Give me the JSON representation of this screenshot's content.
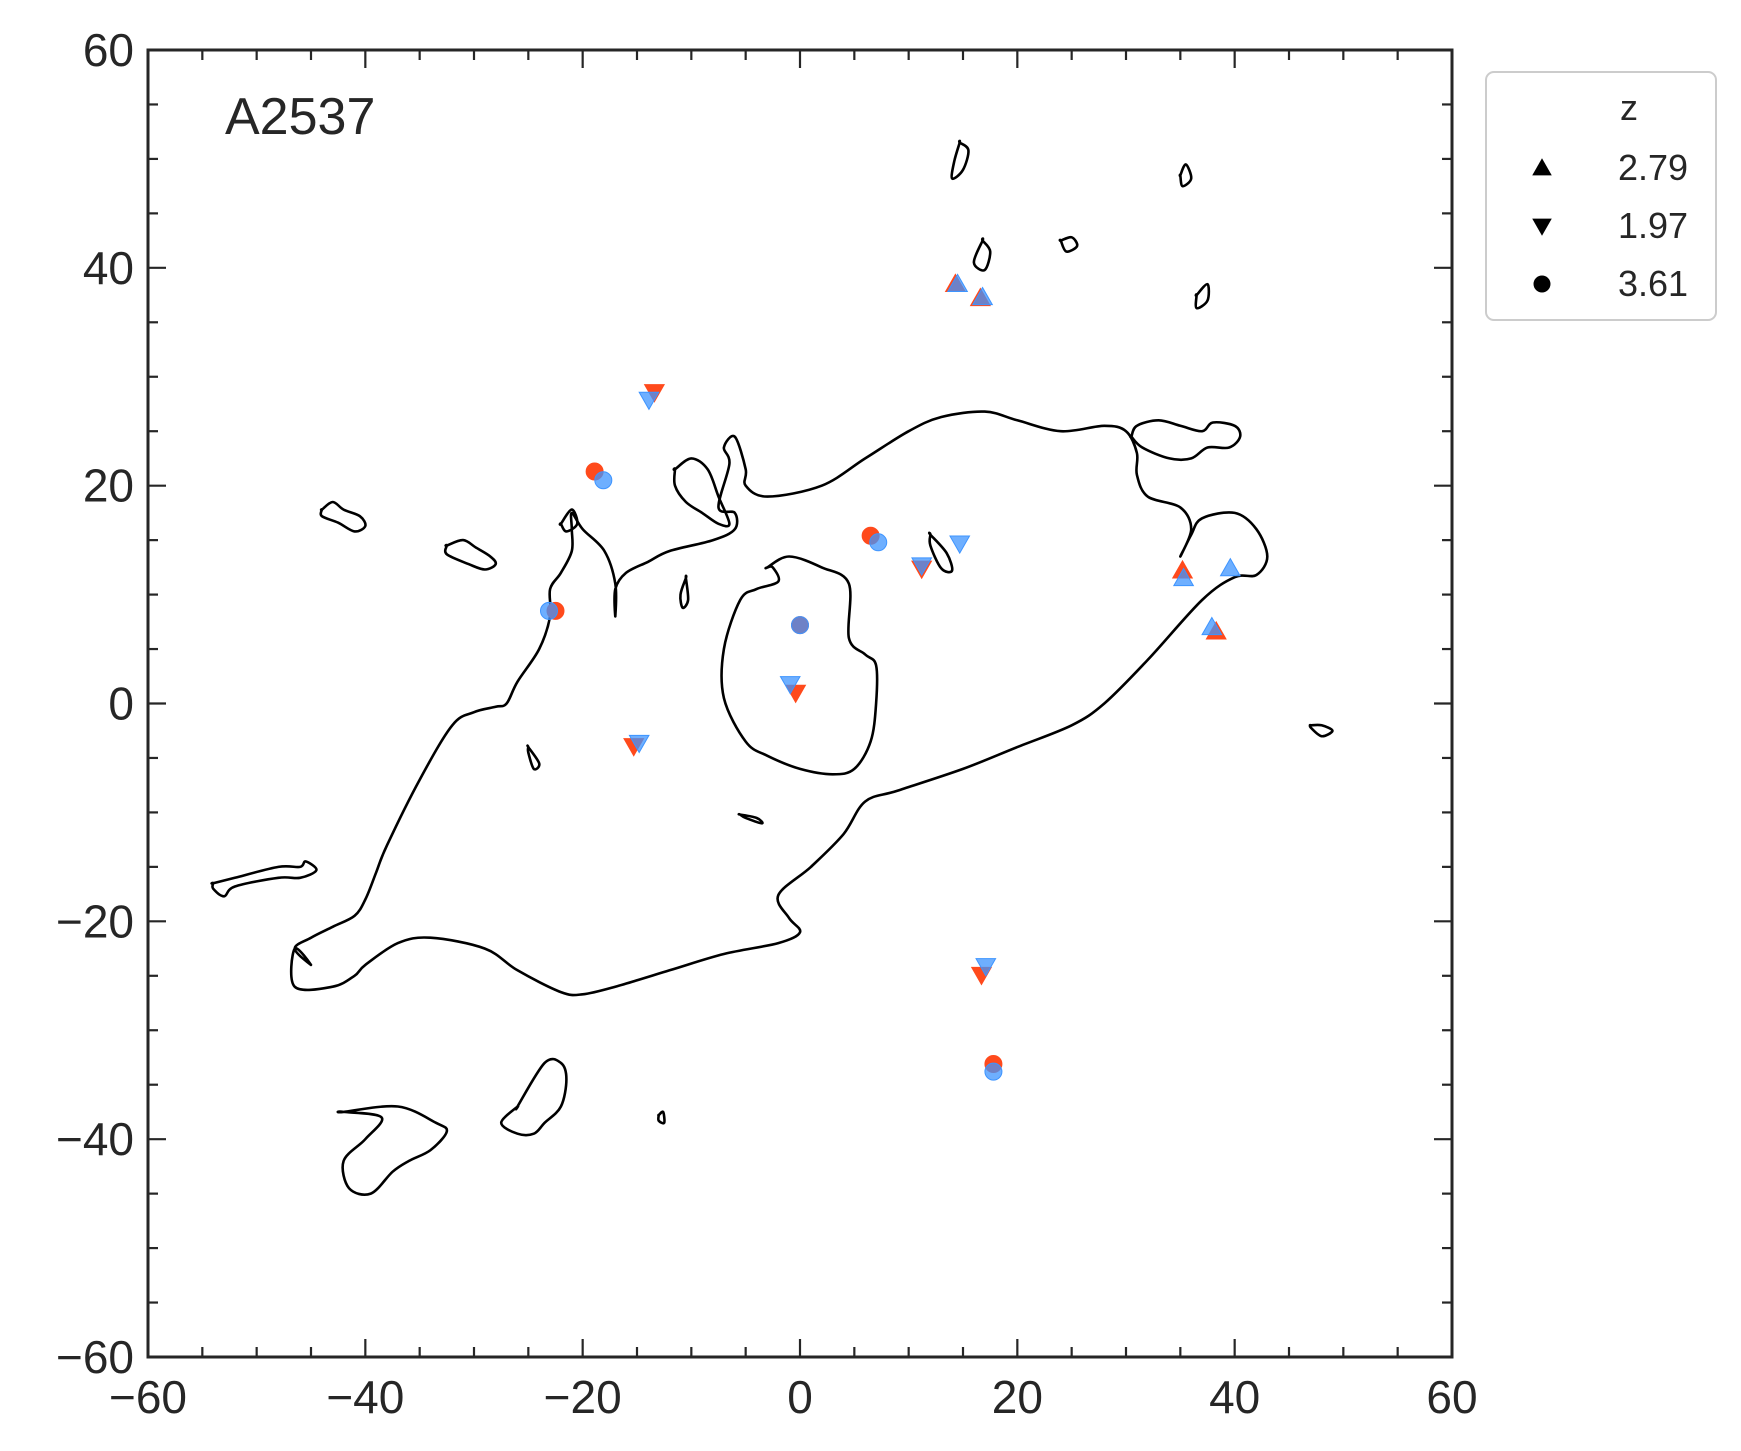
{
  "chart_data": {
    "type": "scatter",
    "annotation": "A2537",
    "xlim": [
      -60,
      60
    ],
    "ylim": [
      -60,
      60
    ],
    "x_ticks": [
      -60,
      -40,
      -20,
      0,
      20,
      40,
      60
    ],
    "y_ticks": [
      -60,
      -40,
      -20,
      0,
      20,
      40,
      60
    ],
    "x_tick_labels": [
      "−60",
      "−40",
      "−20",
      "0",
      "20",
      "40",
      "60"
    ],
    "y_tick_labels": [
      "−60",
      "−40",
      "−20",
      "0",
      "20",
      "40",
      "60"
    ],
    "grid": false,
    "legend": {
      "title": "z",
      "placement": "outside-top-right",
      "entries": [
        {
          "marker": "triangle-up",
          "label": "2.79"
        },
        {
          "marker": "triangle-down",
          "label": "1.97"
        },
        {
          "marker": "circle",
          "label": "3.61"
        }
      ]
    },
    "colors": {
      "observed": "#ff4a1c",
      "model": "#3d94ff",
      "critical_curve": "#000000",
      "axes": "#262626"
    },
    "series": [
      {
        "marker": "triangle-up",
        "z": "2.79",
        "observed": [
          [
            14.3,
            38.5
          ],
          [
            16.6,
            37.2
          ],
          [
            35.2,
            12.2
          ],
          [
            38.3,
            6.6
          ]
        ],
        "model": [
          [
            14.5,
            38.5
          ],
          [
            16.8,
            37.3
          ],
          [
            35.3,
            11.5
          ],
          [
            37.9,
            7.0
          ],
          [
            39.6,
            12.4
          ]
        ]
      },
      {
        "marker": "triangle-down",
        "z": "1.97",
        "observed": [
          [
            -13.4,
            28.6
          ],
          [
            -15.3,
            -3.9
          ],
          [
            -0.4,
            1.0
          ],
          [
            16.7,
            -24.9
          ],
          [
            11.2,
            12.4
          ]
        ],
        "model": [
          [
            -13.9,
            27.9
          ],
          [
            -14.8,
            -3.6
          ],
          [
            -0.9,
            1.8
          ],
          [
            17.1,
            -24.1
          ],
          [
            11.2,
            12.7
          ],
          [
            14.7,
            14.7
          ]
        ]
      },
      {
        "marker": "circle",
        "z": "3.61",
        "observed": [
          [
            -18.9,
            21.3
          ],
          [
            -22.5,
            8.5
          ],
          [
            6.5,
            15.4
          ],
          [
            0.0,
            7.2
          ],
          [
            17.8,
            -33.1
          ]
        ],
        "model": [
          [
            -18.1,
            20.5
          ],
          [
            -23.1,
            8.5
          ],
          [
            7.2,
            14.8
          ],
          [
            0.0,
            7.2
          ],
          [
            17.8,
            -33.8
          ]
        ]
      }
    ],
    "critical_curves": [
      [
        [
          -45,
          -24
        ],
        [
          -46.5,
          -22.5
        ],
        [
          -46.5,
          -26
        ],
        [
          -43,
          -26
        ],
        [
          -41,
          -25
        ],
        [
          -40,
          -24
        ],
        [
          -37,
          -22
        ],
        [
          -34,
          -21.5
        ],
        [
          -29,
          -22.5
        ],
        [
          -26,
          -24.5
        ],
        [
          -22,
          -26.5
        ],
        [
          -20,
          -26.7
        ],
        [
          -17,
          -26
        ],
        [
          -12,
          -24.5
        ],
        [
          -7,
          -23
        ],
        [
          -2,
          -22
        ],
        [
          0,
          -21
        ],
        [
          -1,
          -19.7
        ],
        [
          -2,
          -17.6
        ],
        [
          1,
          -15
        ],
        [
          4,
          -12
        ],
        [
          6,
          -9
        ],
        [
          9,
          -8
        ],
        [
          15,
          -6
        ],
        [
          20,
          -4
        ],
        [
          25,
          -2
        ],
        [
          28,
          0
        ],
        [
          32,
          4
        ],
        [
          37,
          9.5
        ],
        [
          40,
          11.6
        ],
        [
          42,
          11.8
        ],
        [
          43,
          13.5
        ],
        [
          42,
          16
        ],
        [
          40,
          17.5
        ],
        [
          37,
          17
        ],
        [
          36,
          15.5
        ],
        [
          35,
          13.5
        ],
        [
          36,
          16
        ],
        [
          35,
          18
        ],
        [
          32,
          19
        ],
        [
          31,
          21
        ],
        [
          31,
          23
        ],
        [
          30,
          25
        ],
        [
          28,
          25.5
        ],
        [
          24,
          25
        ],
        [
          20,
          26
        ],
        [
          17,
          26.8
        ],
        [
          13,
          26.3
        ],
        [
          10,
          25
        ],
        [
          6,
          22.5
        ],
        [
          2,
          20
        ],
        [
          -3,
          19
        ],
        [
          -5,
          20
        ],
        [
          -5,
          21.5
        ],
        [
          -6,
          24.5
        ],
        [
          -7,
          23.5
        ],
        [
          -6.5,
          22
        ],
        [
          -7.5,
          18
        ],
        [
          -6,
          17.5
        ],
        [
          -6,
          16
        ],
        [
          -8,
          15
        ],
        [
          -12,
          14
        ],
        [
          -14,
          13
        ],
        [
          -16,
          12
        ],
        [
          -17,
          10.5
        ],
        [
          -17,
          8
        ],
        [
          -17,
          11
        ],
        [
          -18,
          14
        ],
        [
          -20,
          16
        ],
        [
          -21,
          17.5
        ],
        [
          -21,
          16
        ],
        [
          -21,
          14
        ],
        [
          -22,
          12
        ],
        [
          -23,
          10.5
        ],
        [
          -23,
          8
        ],
        [
          -24,
          5
        ],
        [
          -26,
          2
        ],
        [
          -27,
          0
        ],
        [
          -28,
          -0.3
        ],
        [
          -30,
          -0.8
        ],
        [
          -32,
          -2
        ],
        [
          -35,
          -7
        ],
        [
          -38,
          -13
        ],
        [
          -39,
          -15.5
        ],
        [
          -40,
          -18
        ],
        [
          -41,
          -19.5
        ],
        [
          -43,
          -20.5
        ],
        [
          -45,
          -21.5
        ],
        [
          -46.5,
          -22.5
        ]
      ],
      [
        [
          -3,
          12.5
        ],
        [
          -1,
          13.5
        ],
        [
          2,
          12.5
        ],
        [
          4.5,
          11
        ],
        [
          4.5,
          6
        ],
        [
          6,
          4.5
        ],
        [
          7,
          3.5
        ],
        [
          7,
          0
        ],
        [
          6.5,
          -3.5
        ],
        [
          5,
          -6
        ],
        [
          3,
          -6.5
        ],
        [
          0,
          -6
        ],
        [
          -3,
          -4.8
        ],
        [
          -5,
          -3.5
        ],
        [
          -7,
          0.5
        ],
        [
          -7,
          5
        ],
        [
          -5.5,
          9.5
        ],
        [
          -4,
          10.5
        ],
        [
          -2,
          11.2
        ],
        [
          -2.5,
          12.5
        ],
        [
          -3,
          12.5
        ]
      ],
      [
        [
          30.5,
          24.5
        ],
        [
          31,
          25.5
        ],
        [
          33,
          26
        ],
        [
          35,
          25.5
        ],
        [
          37,
          25
        ],
        [
          38,
          25.8
        ],
        [
          40,
          25.5
        ],
        [
          40.5,
          24.5
        ],
        [
          39.5,
          23.5
        ],
        [
          37.5,
          23.5
        ],
        [
          36,
          22.5
        ],
        [
          34,
          22.5
        ],
        [
          31.5,
          23.5
        ],
        [
          30.5,
          24.5
        ]
      ],
      [
        [
          -44,
          17.8
        ],
        [
          -43,
          18.5
        ],
        [
          -42,
          17.8
        ],
        [
          -40.5,
          17.2
        ],
        [
          -40,
          16.3
        ],
        [
          -41,
          15.8
        ],
        [
          -42.5,
          16.6
        ],
        [
          -44,
          17.2
        ],
        [
          -44,
          17.8
        ]
      ],
      [
        [
          -32.5,
          14.5
        ],
        [
          -31,
          15
        ],
        [
          -29.8,
          14.3
        ],
        [
          -28.5,
          13.5
        ],
        [
          -28,
          12.8
        ],
        [
          -29,
          12.3
        ],
        [
          -30.5,
          12.8
        ],
        [
          -32.5,
          13.7
        ],
        [
          -32.5,
          14.5
        ]
      ],
      [
        [
          -11.5,
          21.5
        ],
        [
          -10,
          22.5
        ],
        [
          -8.5,
          21.5
        ],
        [
          -7.5,
          19
        ],
        [
          -6.5,
          16.5
        ],
        [
          -7.5,
          16.5
        ],
        [
          -9,
          17.5
        ],
        [
          -10.5,
          18.5
        ],
        [
          -11.5,
          20
        ],
        [
          -11.5,
          21.5
        ]
      ],
      [
        [
          -22,
          16.5
        ],
        [
          -21,
          17.8
        ],
        [
          -20.5,
          16.5
        ],
        [
          -21.5,
          15.8
        ],
        [
          -22,
          16.5
        ]
      ],
      [
        [
          -10.5,
          11.5
        ],
        [
          -10.3,
          9.5
        ],
        [
          -10.8,
          8.8
        ],
        [
          -11,
          10
        ],
        [
          -10.5,
          11.5
        ]
      ],
      [
        [
          12,
          15.5
        ],
        [
          13.5,
          13.8
        ],
        [
          14,
          12.2
        ],
        [
          13,
          12.4
        ],
        [
          12,
          14.5
        ],
        [
          12,
          15.5
        ]
      ],
      [
        [
          14.7,
          51.5
        ],
        [
          15.5,
          50.8
        ],
        [
          15,
          49
        ],
        [
          14,
          48.2
        ],
        [
          14.2,
          49.8
        ],
        [
          14.7,
          51.5
        ]
      ],
      [
        [
          16.8,
          42.5
        ],
        [
          17.5,
          41.5
        ],
        [
          17,
          39.8
        ],
        [
          16,
          40.5
        ],
        [
          16.8,
          42.5
        ]
      ],
      [
        [
          24,
          42.5
        ],
        [
          25,
          42.8
        ],
        [
          25.5,
          42
        ],
        [
          24.5,
          41.5
        ],
        [
          24,
          42.5
        ]
      ],
      [
        [
          35,
          48.5
        ],
        [
          35.5,
          49.5
        ],
        [
          36,
          48.2
        ],
        [
          35.2,
          47.5
        ],
        [
          35,
          48.5
        ]
      ],
      [
        [
          36.5,
          37.5
        ],
        [
          37.5,
          38.5
        ],
        [
          37.5,
          37
        ],
        [
          36.5,
          36.3
        ],
        [
          36.5,
          37.5
        ]
      ],
      [
        [
          47,
          -2
        ],
        [
          48,
          -2
        ],
        [
          49,
          -2.5
        ],
        [
          48,
          -3
        ],
        [
          47,
          -2.2
        ],
        [
          47,
          -2
        ]
      ],
      [
        [
          -25,
          -4
        ],
        [
          -24,
          -5.5
        ],
        [
          -24.5,
          -6
        ],
        [
          -25,
          -4.5
        ],
        [
          -25,
          -4
        ]
      ],
      [
        [
          -5.5,
          -10.2
        ],
        [
          -4,
          -10.5
        ],
        [
          -3.5,
          -11
        ],
        [
          -5,
          -10.5
        ],
        [
          -5.5,
          -10.2
        ]
      ],
      [
        [
          -54,
          -16.5
        ],
        [
          -52,
          -16
        ],
        [
          -48,
          -15
        ],
        [
          -46,
          -15
        ],
        [
          -45.5,
          -14.5
        ],
        [
          -44.5,
          -15.3
        ],
        [
          -46,
          -16
        ],
        [
          -48,
          -16
        ],
        [
          -52,
          -16.8
        ],
        [
          -53,
          -17.7
        ],
        [
          -54,
          -17
        ],
        [
          -54,
          -16.5
        ]
      ],
      [
        [
          -42,
          -37.5
        ],
        [
          -37,
          -37
        ],
        [
          -33.5,
          -38.5
        ],
        [
          -32.5,
          -39.3
        ],
        [
          -34,
          -41
        ],
        [
          -36,
          -42
        ],
        [
          -37.5,
          -43
        ],
        [
          -39.5,
          -45
        ],
        [
          -41.5,
          -44.5
        ],
        [
          -42,
          -42
        ],
        [
          -40,
          -40
        ],
        [
          -38.5,
          -38
        ],
        [
          -42,
          -37.5
        ]
      ],
      [
        [
          -26,
          -37
        ],
        [
          -23.5,
          -33
        ],
        [
          -22,
          -33
        ],
        [
          -21.5,
          -34.5
        ],
        [
          -22,
          -37
        ],
        [
          -23.5,
          -38.5
        ],
        [
          -24.5,
          -39.5
        ],
        [
          -26,
          -39.5
        ],
        [
          -27.5,
          -38.5
        ],
        [
          -26,
          -37
        ]
      ],
      [
        [
          -13,
          -37.8
        ],
        [
          -12.6,
          -37.5
        ],
        [
          -12.5,
          -38.5
        ],
        [
          -13,
          -38.3
        ],
        [
          -13,
          -37.8
        ]
      ]
    ]
  }
}
